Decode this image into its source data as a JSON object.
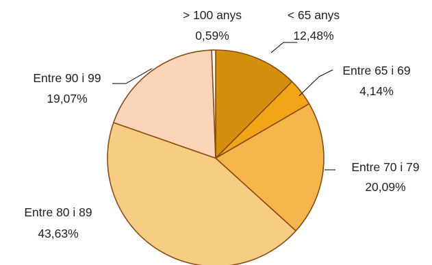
{
  "chart_data": {
    "type": "pie",
    "title": "",
    "categories": [
      "< 65 anys",
      "Entre 65 i 69",
      "Entre 70 i 79",
      "Entre 80 i 89",
      "Entre 90 i 99",
      "> 100 anys"
    ],
    "values": [
      12.48,
      4.14,
      20.09,
      43.63,
      19.07,
      0.59
    ],
    "value_labels": [
      "12,48%",
      "4,14%",
      "20,09%",
      "43,63%",
      "19,07%",
      "0,59%"
    ],
    "colors": [
      "#D48F0D",
      "#F2A516",
      "#F4B54B",
      "#F7CD84",
      "#FBD5B8",
      "#FFFFFF"
    ],
    "edge_color": "#8B4A12",
    "legend": "none",
    "data_labels": "outside with leader lines"
  }
}
